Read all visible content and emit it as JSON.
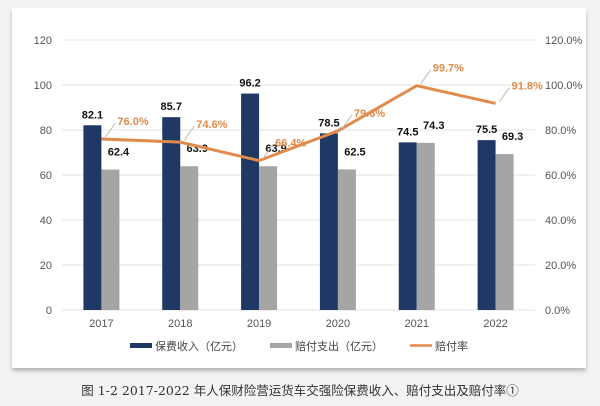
{
  "chart_data": {
    "type": "bar+line",
    "categories": [
      "2017",
      "2018",
      "2019",
      "2020",
      "2021",
      "2022"
    ],
    "series": [
      {
        "name": "保费收入（亿元）",
        "type": "bar",
        "axis": "left",
        "color": "#1f3864",
        "values": [
          82.1,
          85.7,
          96.2,
          78.5,
          74.5,
          75.5
        ],
        "labels": [
          "82.1",
          "85.7",
          "96.2",
          "78.5",
          "74.5",
          "75.5"
        ]
      },
      {
        "name": "赔付支出（亿元）",
        "type": "bar",
        "axis": "left",
        "color": "#a5a5a5",
        "values": [
          62.4,
          63.9,
          63.9,
          62.5,
          74.3,
          69.3
        ],
        "labels": [
          "62.4",
          "63.9",
          "63.9",
          "62.5",
          "74.3",
          "69.3"
        ]
      },
      {
        "name": "赔付率",
        "type": "line",
        "axis": "right",
        "color": "#e08a4c",
        "values": [
          76.0,
          74.6,
          66.4,
          79.6,
          99.7,
          91.8
        ],
        "labels": [
          "76.0%",
          "74.6%",
          "66.4%",
          "79.6%",
          "99.7%",
          "91.8%"
        ]
      }
    ],
    "left_axis": {
      "ylim": [
        0,
        120
      ],
      "ticks": [
        "0",
        "20",
        "40",
        "60",
        "80",
        "100",
        "120"
      ]
    },
    "right_axis": {
      "ylim": [
        0,
        120
      ],
      "ticks": [
        "0.0%",
        "20.0%",
        "40.0%",
        "60.0%",
        "80.0%",
        "100.0%",
        "120.0%"
      ]
    },
    "grid": true,
    "legend": "bottom"
  },
  "caption": "图 1-2 2017-2022 年人保财险营运货车交强险保费收入、赔付支出及赔付率①"
}
